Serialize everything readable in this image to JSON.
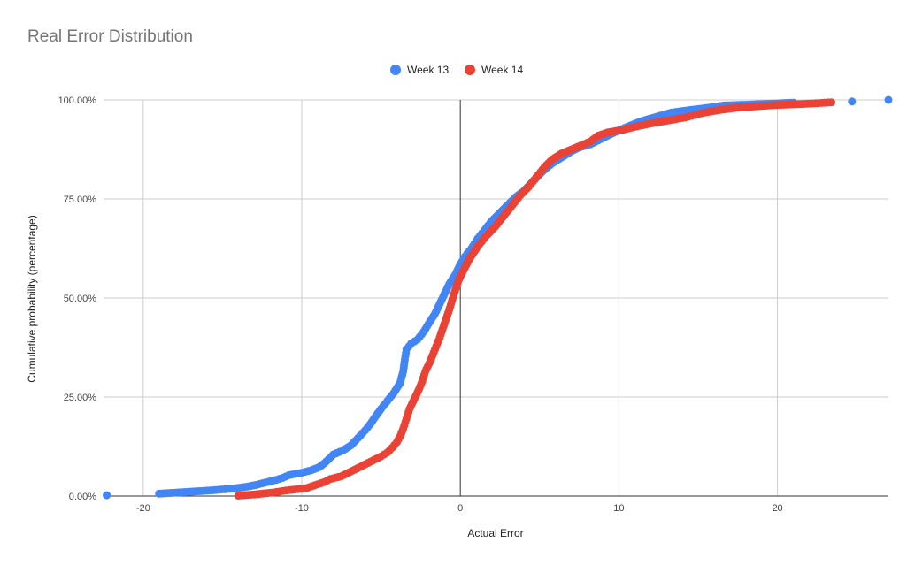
{
  "chart_data": {
    "type": "scatter",
    "title": "Real Error Distribution",
    "xlabel": "Actual Error",
    "ylabel": "Cumulative probability (percentage)",
    "xlim": [
      -22.5,
      27
    ],
    "ylim": [
      0,
      100
    ],
    "x_ticks": [
      -20,
      -10,
      0,
      10,
      20
    ],
    "x_tick_labels": [
      "-20",
      "-10",
      "0",
      "10",
      "20"
    ],
    "y_ticks": [
      0,
      25,
      50,
      75,
      100
    ],
    "y_tick_labels": [
      "0.00%",
      "25.00%",
      "50.00%",
      "75.00%",
      "100.00%"
    ],
    "grid": true,
    "legend": "top-center",
    "series": [
      {
        "name": "Week 13",
        "color": "#4285f4",
        "points": [
          [
            -22.3,
            0.2
          ],
          [
            -19.0,
            0.6
          ],
          [
            -17.4,
            1.0
          ],
          [
            -15.8,
            1.4
          ],
          [
            -14.3,
            1.9
          ],
          [
            -13.4,
            2.4
          ],
          [
            -12.9,
            2.8
          ],
          [
            -12.5,
            3.2
          ],
          [
            -12.1,
            3.6
          ],
          [
            -11.6,
            4.1
          ],
          [
            -11.2,
            4.6
          ],
          [
            -10.8,
            5.3
          ],
          [
            -10.0,
            5.9
          ],
          [
            -9.4,
            6.5
          ],
          [
            -8.9,
            7.3
          ],
          [
            -8.6,
            8.2
          ],
          [
            -8.3,
            9.3
          ],
          [
            -8.0,
            10.5
          ],
          [
            -7.4,
            11.5
          ],
          [
            -6.9,
            12.8
          ],
          [
            -6.6,
            14.0
          ],
          [
            -6.3,
            15.3
          ],
          [
            -6.0,
            16.6
          ],
          [
            -5.7,
            18.0
          ],
          [
            -5.4,
            19.8
          ],
          [
            -5.0,
            22.0
          ],
          [
            -4.6,
            24.0
          ],
          [
            -4.2,
            26.0
          ],
          [
            -3.8,
            28.5
          ],
          [
            -3.6,
            31.5
          ],
          [
            -3.5,
            34.5
          ],
          [
            -3.4,
            37.0
          ],
          [
            -3.1,
            38.5
          ],
          [
            -2.7,
            39.5
          ],
          [
            -2.3,
            41.5
          ],
          [
            -2.0,
            43.5
          ],
          [
            -1.6,
            46.0
          ],
          [
            -1.3,
            48.5
          ],
          [
            -1.0,
            51.0
          ],
          [
            -0.7,
            53.5
          ],
          [
            -0.3,
            56.0
          ],
          [
            0.0,
            58.5
          ],
          [
            0.3,
            60.5
          ],
          [
            0.7,
            62.5
          ],
          [
            1.1,
            65.0
          ],
          [
            1.5,
            67.0
          ],
          [
            2.0,
            69.5
          ],
          [
            2.5,
            71.5
          ],
          [
            3.0,
            73.5
          ],
          [
            3.5,
            75.5
          ],
          [
            4.0,
            77.0
          ],
          [
            4.6,
            79.5
          ],
          [
            5.2,
            82.0
          ],
          [
            5.8,
            84.0
          ],
          [
            6.4,
            85.5
          ],
          [
            7.0,
            87.0
          ],
          [
            7.5,
            88.0
          ],
          [
            8.2,
            88.8
          ],
          [
            8.7,
            89.8
          ],
          [
            9.3,
            91.0
          ],
          [
            10.0,
            92.3
          ],
          [
            10.7,
            93.5
          ],
          [
            11.4,
            94.6
          ],
          [
            11.9,
            95.2
          ],
          [
            13.3,
            96.8
          ],
          [
            14.4,
            97.4
          ],
          [
            15.8,
            98.1
          ],
          [
            16.6,
            98.6
          ],
          [
            18.8,
            98.9
          ],
          [
            21.0,
            99.3
          ],
          [
            24.7,
            99.6
          ],
          [
            27.0,
            100.0
          ]
        ]
      },
      {
        "name": "Week 14",
        "color": "#ea4335",
        "points": [
          [
            -14.0,
            0.1
          ],
          [
            -13.0,
            0.4
          ],
          [
            -11.8,
            0.9
          ],
          [
            -11.0,
            1.4
          ],
          [
            -9.7,
            2.0
          ],
          [
            -9.2,
            2.7
          ],
          [
            -8.6,
            3.5
          ],
          [
            -8.2,
            4.3
          ],
          [
            -7.5,
            5.0
          ],
          [
            -7.0,
            6.0
          ],
          [
            -6.5,
            7.0
          ],
          [
            -6.0,
            8.0
          ],
          [
            -5.5,
            9.0
          ],
          [
            -5.0,
            10.0
          ],
          [
            -4.6,
            11.0
          ],
          [
            -4.3,
            12.2
          ],
          [
            -4.0,
            13.6
          ],
          [
            -3.8,
            15.0
          ],
          [
            -3.6,
            17.0
          ],
          [
            -3.4,
            19.5
          ],
          [
            -3.2,
            22.0
          ],
          [
            -2.9,
            24.5
          ],
          [
            -2.6,
            27.0
          ],
          [
            -2.4,
            29.0
          ],
          [
            -2.2,
            31.5
          ],
          [
            -1.9,
            34.0
          ],
          [
            -1.6,
            37.0
          ],
          [
            -1.3,
            40.0
          ],
          [
            -1.0,
            43.5
          ],
          [
            -0.7,
            47.0
          ],
          [
            -0.4,
            51.0
          ],
          [
            -0.1,
            54.5
          ],
          [
            0.2,
            57.0
          ],
          [
            0.6,
            60.0
          ],
          [
            1.1,
            63.0
          ],
          [
            1.6,
            65.5
          ],
          [
            2.2,
            68.0
          ],
          [
            2.8,
            71.0
          ],
          [
            3.3,
            73.5
          ],
          [
            3.8,
            76.0
          ],
          [
            4.3,
            78.0
          ],
          [
            4.8,
            80.5
          ],
          [
            5.3,
            83.0
          ],
          [
            5.8,
            85.0
          ],
          [
            6.4,
            86.5
          ],
          [
            7.0,
            87.5
          ],
          [
            7.6,
            88.5
          ],
          [
            8.2,
            89.5
          ],
          [
            8.7,
            91.0
          ],
          [
            9.3,
            91.8
          ],
          [
            10.3,
            92.5
          ],
          [
            11.0,
            93.2
          ],
          [
            11.7,
            93.8
          ],
          [
            12.5,
            94.4
          ],
          [
            13.4,
            95.0
          ],
          [
            14.2,
            95.6
          ],
          [
            14.8,
            96.2
          ],
          [
            15.4,
            96.8
          ],
          [
            16.4,
            97.5
          ],
          [
            17.6,
            98.1
          ],
          [
            19.8,
            98.7
          ],
          [
            21.7,
            99.0
          ],
          [
            22.6,
            99.2
          ],
          [
            23.4,
            99.4
          ]
        ]
      }
    ]
  }
}
